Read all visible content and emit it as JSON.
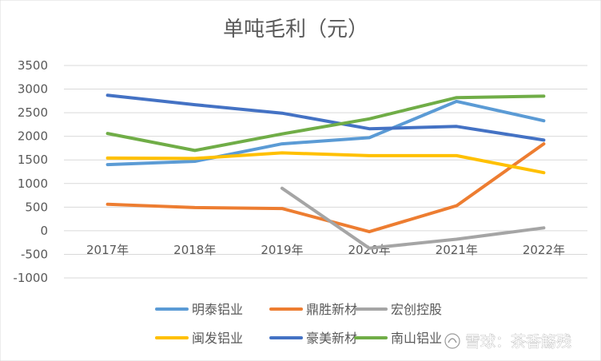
{
  "chart_data": {
    "type": "line",
    "title": "单吨毛利（元）",
    "xlabel": "",
    "ylabel": "",
    "categories": [
      "2017年",
      "2018年",
      "2019年",
      "2020年",
      "2021年",
      "2022年"
    ],
    "ylim": [
      -1000,
      3500
    ],
    "yticks": [
      3500,
      3000,
      2500,
      2000,
      1500,
      1000,
      500,
      0,
      -500,
      -1000
    ],
    "grid": true,
    "legend_position": "bottom",
    "series": [
      {
        "name": "明泰铝业",
        "color": "#5B9BD5",
        "values": [
          1400,
          1470,
          1840,
          1970,
          2740,
          2330
        ]
      },
      {
        "name": "鼎胜新材",
        "color": "#ED7D31",
        "values": [
          560,
          490,
          470,
          -20,
          530,
          1840
        ]
      },
      {
        "name": "宏创控股",
        "color": "#A5A5A5",
        "values": [
          null,
          null,
          900,
          -370,
          -180,
          60
        ]
      },
      {
        "name": "闽发铝业",
        "color": "#FFC000",
        "values": [
          1540,
          1530,
          1650,
          1590,
          1590,
          1230
        ]
      },
      {
        "name": "豪美新材",
        "color": "#4472C4",
        "values": [
          2870,
          2670,
          2490,
          2160,
          2210,
          1920
        ]
      },
      {
        "name": "南山铝业",
        "color": "#70AD47",
        "values": [
          2060,
          1700,
          2050,
          2370,
          2820,
          2850
        ]
      }
    ]
  },
  "watermark": "雪球：茶香觞残"
}
